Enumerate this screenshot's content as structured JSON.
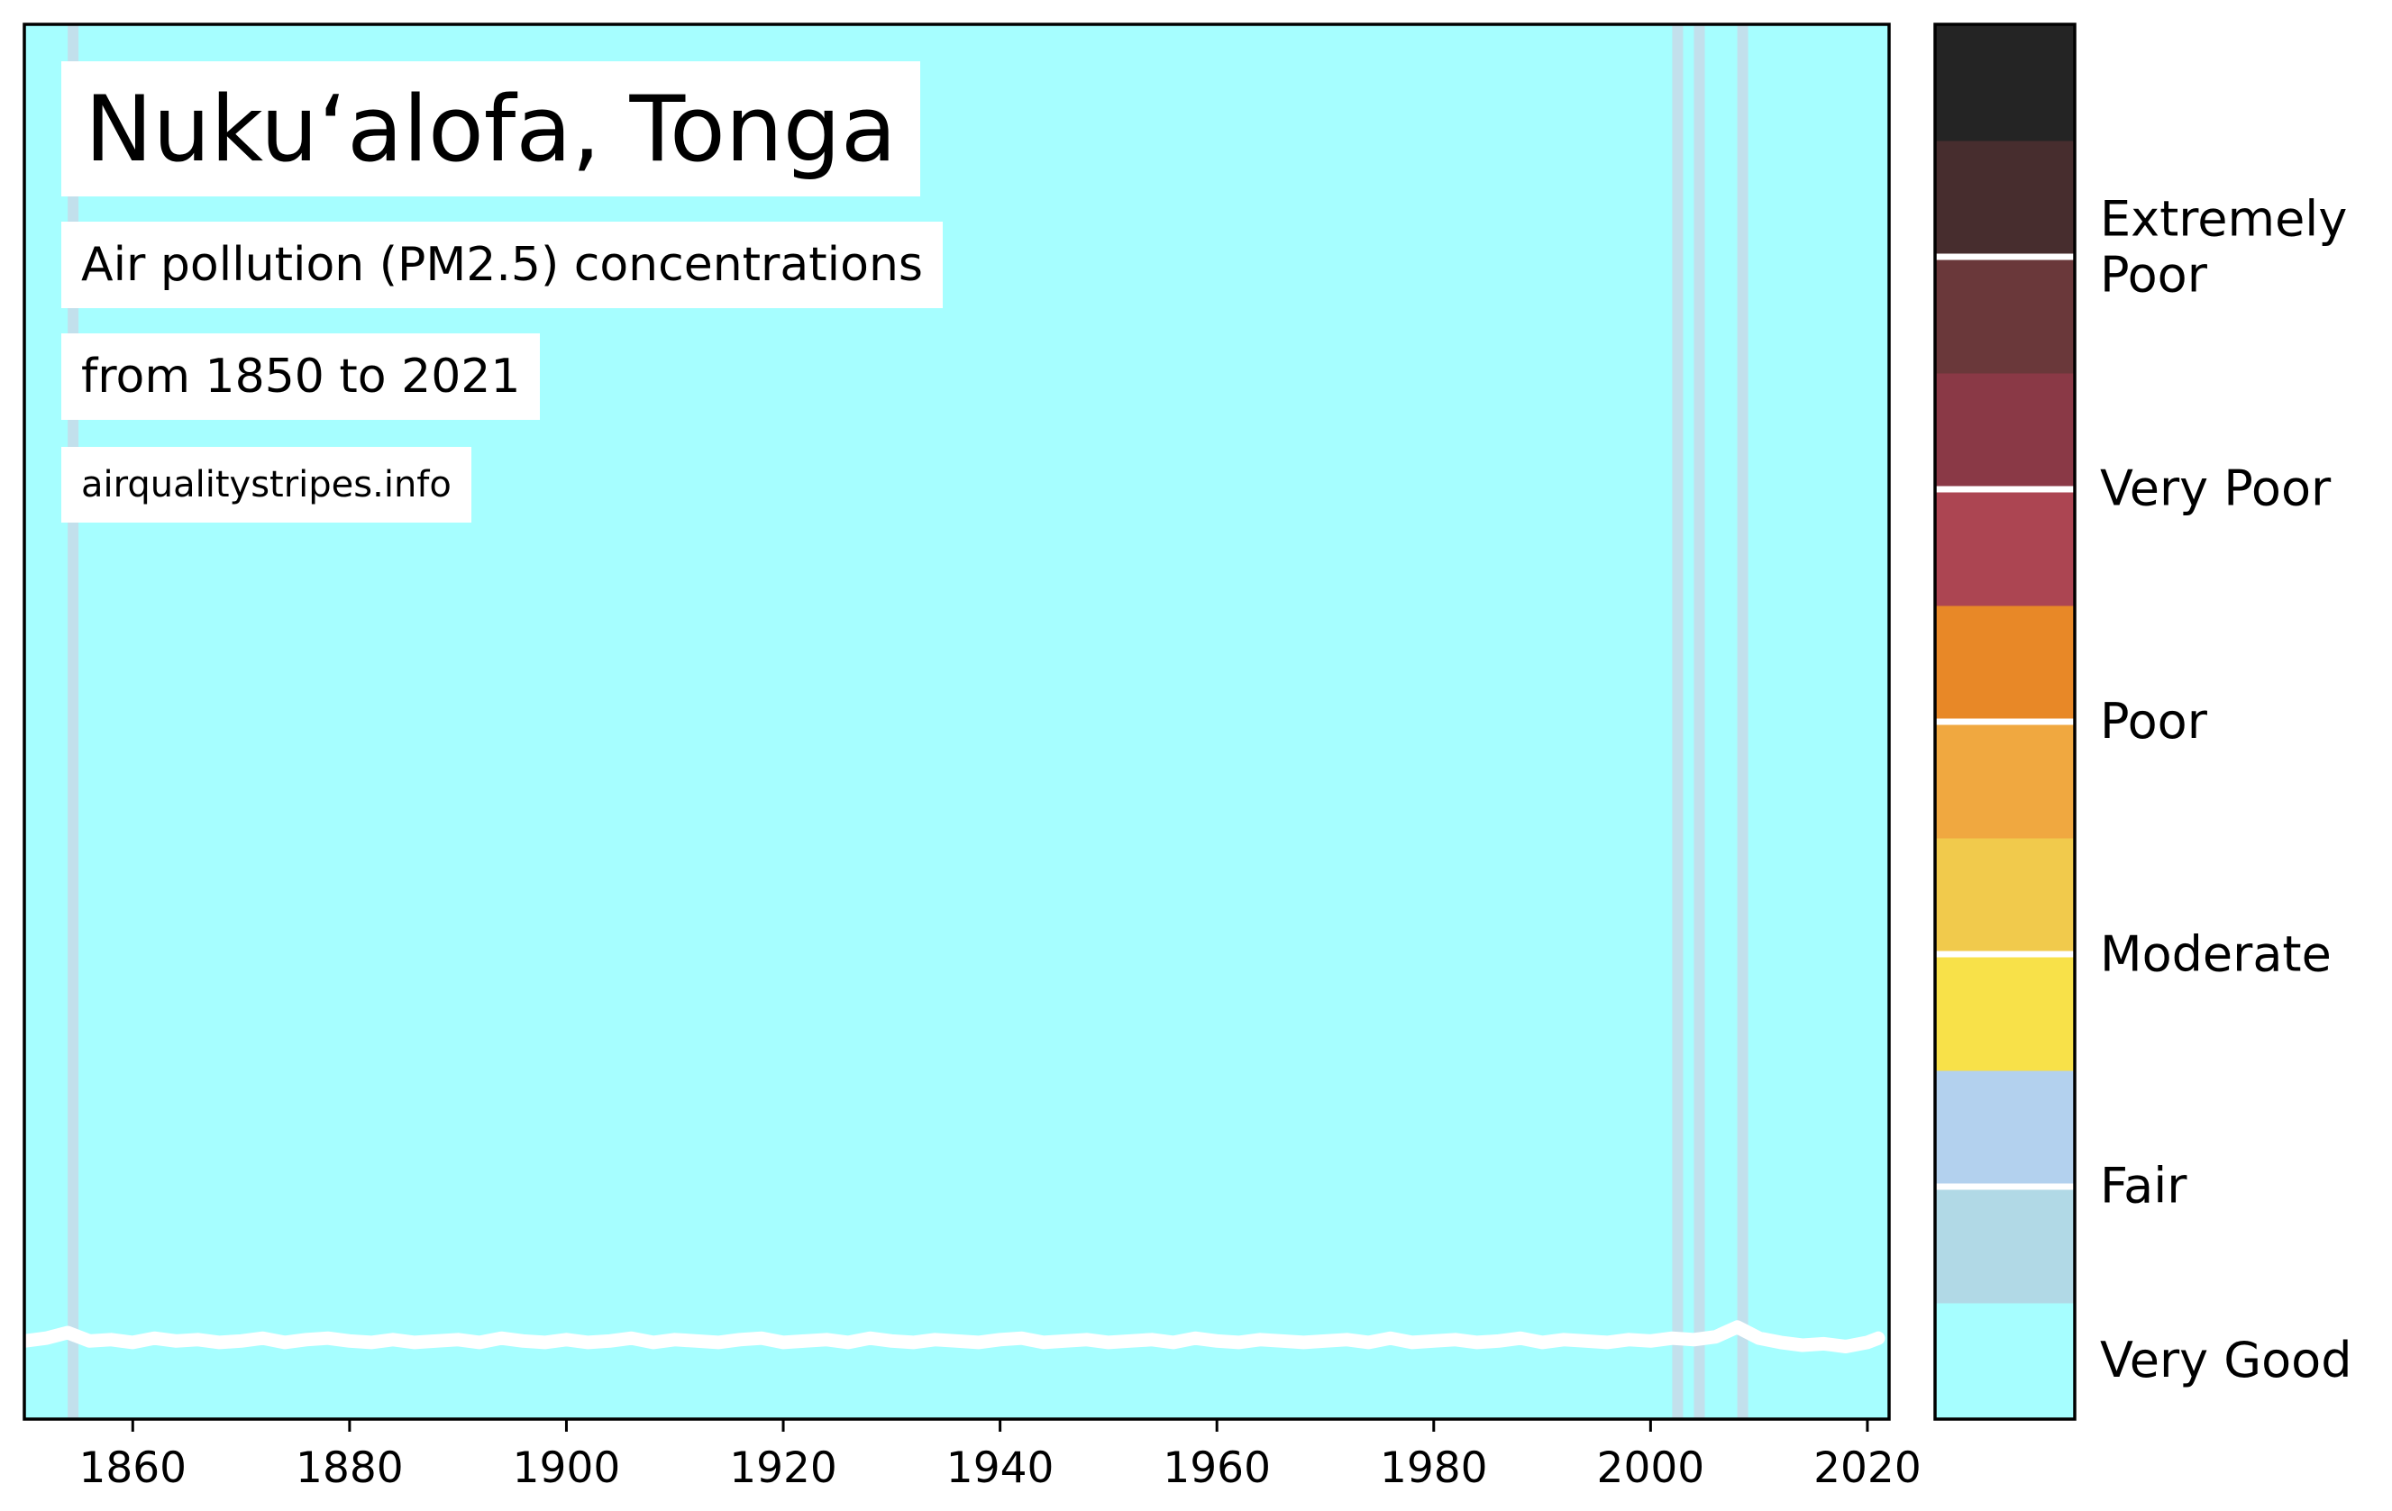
{
  "chart_data": {
    "type": "heatmap",
    "title": "Nuku‘alofa, Tonga",
    "subtitle": "Air pollution (PM2.5) concentrations",
    "date_range_text": "from 1850 to 2021",
    "source_text": "airqualitystripes.info",
    "x_range": [
      1850,
      2022
    ],
    "x_ticks": [
      1860,
      1880,
      1900,
      1920,
      1940,
      1960,
      1980,
      2000,
      2020
    ],
    "base_category": "Very Good",
    "base_color": "#a6feff",
    "highlighted_years": [
      {
        "year": 1854,
        "category": "Fair",
        "color": "#c2e0ec"
      },
      {
        "year": 2002,
        "category": "Fair",
        "color": "#c2e0ec"
      },
      {
        "year": 2004,
        "category": "Fair",
        "color": "#c2e0ec"
      },
      {
        "year": 2008,
        "category": "Fair",
        "color": "#c2e0ec"
      }
    ],
    "trend_line": {
      "color": "#ffffff",
      "years": [
        1850,
        1852,
        1854,
        1856,
        1858,
        1860,
        1862,
        1864,
        1866,
        1868,
        1870,
        1872,
        1874,
        1876,
        1878,
        1880,
        1882,
        1884,
        1886,
        1888,
        1890,
        1892,
        1894,
        1896,
        1898,
        1900,
        1902,
        1904,
        1906,
        1908,
        1910,
        1912,
        1914,
        1916,
        1918,
        1920,
        1922,
        1924,
        1926,
        1928,
        1930,
        1932,
        1934,
        1936,
        1938,
        1940,
        1942,
        1944,
        1946,
        1948,
        1950,
        1952,
        1954,
        1956,
        1958,
        1960,
        1962,
        1964,
        1966,
        1968,
        1970,
        1972,
        1974,
        1976,
        1978,
        1980,
        1982,
        1984,
        1986,
        1988,
        1990,
        1992,
        1994,
        1996,
        1998,
        2000,
        2002,
        2004,
        2006,
        2008,
        2010,
        2012,
        2014,
        2016,
        2018,
        2020,
        2021
      ],
      "levels": [
        0.056,
        0.058,
        0.062,
        0.056,
        0.057,
        0.055,
        0.058,
        0.056,
        0.057,
        0.055,
        0.056,
        0.058,
        0.055,
        0.057,
        0.058,
        0.056,
        0.055,
        0.057,
        0.055,
        0.056,
        0.057,
        0.055,
        0.058,
        0.056,
        0.055,
        0.057,
        0.055,
        0.056,
        0.058,
        0.055,
        0.057,
        0.056,
        0.055,
        0.057,
        0.058,
        0.055,
        0.056,
        0.057,
        0.055,
        0.058,
        0.056,
        0.055,
        0.057,
        0.056,
        0.055,
        0.057,
        0.058,
        0.055,
        0.056,
        0.057,
        0.055,
        0.056,
        0.057,
        0.055,
        0.058,
        0.056,
        0.055,
        0.057,
        0.056,
        0.055,
        0.056,
        0.057,
        0.055,
        0.058,
        0.055,
        0.056,
        0.057,
        0.055,
        0.056,
        0.058,
        0.055,
        0.057,
        0.056,
        0.055,
        0.057,
        0.056,
        0.058,
        0.057,
        0.059,
        0.066,
        0.058,
        0.055,
        0.053,
        0.054,
        0.052,
        0.055,
        0.058
      ]
    },
    "colorbar": {
      "bins": [
        "#a6feff",
        "#b1d9e6",
        "#b3d1ee",
        "#f8e149",
        "#f1ca4c",
        "#f0a840",
        "#e88827",
        "#ac4552",
        "#8a3946",
        "#6a383a",
        "#472d2e",
        "#242424"
      ],
      "separators_after_bin": [
        1,
        3,
        5,
        7,
        9
      ],
      "labels": [
        {
          "text": "Very Good",
          "level": 0.042
        },
        {
          "text": "Fair",
          "level": 0.167
        },
        {
          "text": "Moderate",
          "level": 0.333
        },
        {
          "text": "Poor",
          "level": 0.5
        },
        {
          "text": "Very Poor",
          "level": 0.667
        },
        {
          "text": "Extremely",
          "level": 0.86
        },
        {
          "text": "Poor",
          "level": 0.82
        }
      ]
    },
    "grid": false,
    "legend": "colorbar-right"
  }
}
